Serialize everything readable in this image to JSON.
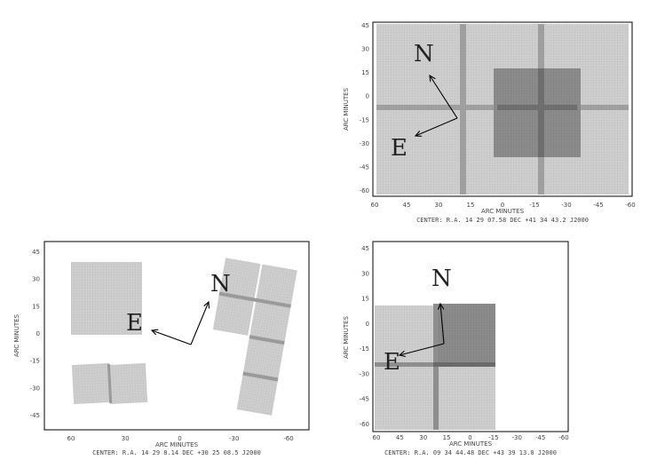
{
  "panels": [
    {
      "id": "top-right",
      "x_label": "ARC MINUTES",
      "y_label": "ARC MINUTES",
      "x_ticks": [
        "60",
        "45",
        "30",
        "15",
        "0",
        "-15",
        "-30",
        "-45",
        "-60"
      ],
      "y_ticks": [
        "45",
        "30",
        "15",
        "0",
        "-15",
        "-30",
        "-45",
        "-60"
      ],
      "center_text": "CENTER: R.A. 14 29 07.58   DEC +41 34 43.2   J2000",
      "compass_n": "N",
      "compass_e": "E"
    },
    {
      "id": "bottom-left",
      "x_label": "ARC MINUTES",
      "y_label": "ARC MINUTES",
      "x_ticks": [
        "60",
        "30",
        "0",
        "-30",
        "-60"
      ],
      "y_ticks": [
        "45",
        "30",
        "15",
        "0",
        "-15",
        "-30",
        "-45"
      ],
      "center_text": "CENTER: R.A. 14 29 8.14   DEC +30 25 08.5   J2000",
      "compass_n": "N",
      "compass_e": "E"
    },
    {
      "id": "bottom-right",
      "x_label": "ARC MINUTES",
      "y_label": "ARC MINUTES",
      "x_ticks": [
        "60",
        "45",
        "30",
        "15",
        "0",
        "-15",
        "-30",
        "-45",
        "-60"
      ],
      "y_ticks": [
        "45",
        "30",
        "15",
        "0",
        "-15",
        "-30",
        "-45",
        "-60"
      ],
      "center_text": "CENTER: R.A. 09 34 44.48   DEC +43 39 13.0   J2000",
      "compass_n": "N",
      "compass_e": "E"
    }
  ]
}
